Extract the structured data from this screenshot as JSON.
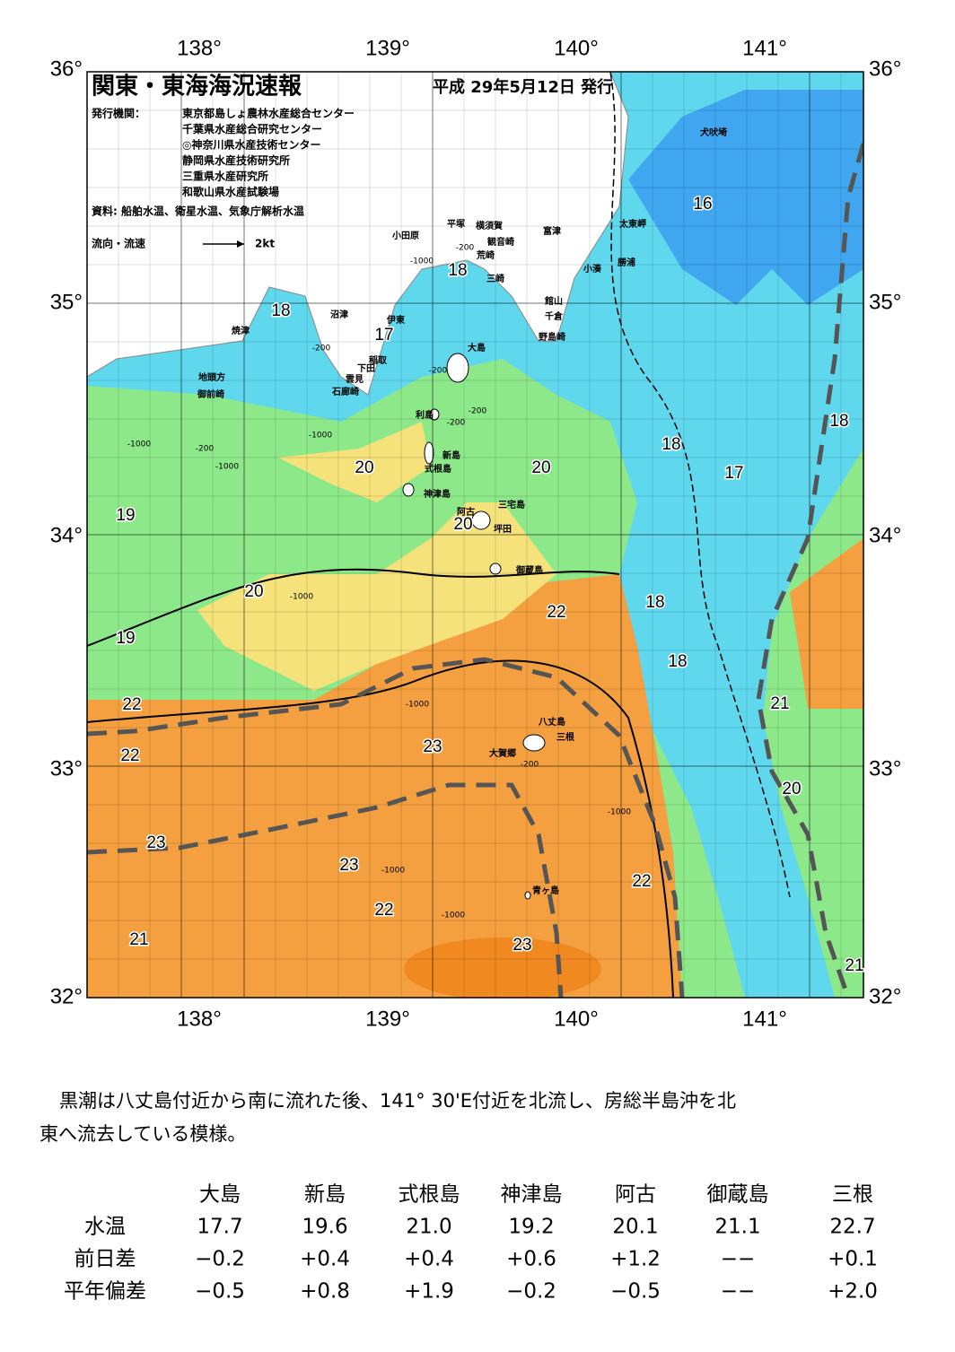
{
  "header": {
    "title": "関東・東海海況速報",
    "date": "平成 29年5月12日 発行",
    "publisher_label": "発行機関：",
    "publishers": [
      "東京都島しょ農林水産総合センター",
      "千葉県水産総合研究センター",
      "◎神奈川県水産技術センター",
      "静岡県水産技術研究所",
      "三重県水産研究所",
      "和歌山県水産試験場"
    ],
    "source": "資料: 船舶水温、衛星水温、気象庁解析水温",
    "legend_label": "流向・流速",
    "legend_scale": "2kt"
  },
  "map": {
    "lon_labels": [
      "138°",
      "139°",
      "140°",
      "141°"
    ],
    "lat_labels": [
      "36°",
      "35°",
      "34°",
      "33°",
      "32°"
    ],
    "place_names": [
      "犬吠埼",
      "太東岬",
      "勝浦",
      "小湊",
      "富津",
      "館山",
      "千倉",
      "野島崎",
      "横須賀",
      "観音崎",
      "荒崎",
      "三崎",
      "平塚",
      "小田原",
      "沼津",
      "伊東",
      "稲取",
      "下田",
      "雲見",
      "石廊崎",
      "焼津",
      "地頭方",
      "御前崎",
      "大島",
      "利島",
      "新島",
      "式根島",
      "神津島",
      "三宅島",
      "阿古",
      "坪田",
      "御蔵島",
      "八丈島",
      "三根",
      "大賀郷",
      "青ヶ島"
    ],
    "temperature_labels": [
      16,
      18,
      18,
      17,
      18,
      17,
      18,
      20,
      20,
      20,
      19,
      20,
      22,
      18,
      18,
      19,
      21,
      22,
      22,
      23,
      20,
      23,
      23,
      22,
      22,
      21,
      23,
      21
    ],
    "depth_labels": [
      "-200",
      "-1000",
      "-200",
      "-200",
      "-200",
      "-1000",
      "-200",
      "-1000",
      "-1000",
      "-200",
      "-1000",
      "-1000",
      "-200",
      "-1000",
      "-1000",
      "-1000"
    ]
  },
  "summary": [
    "黒潮は八丈島付近から南に流れた後、141° 30'E付近を北流し、房総半島沖を北",
    "東へ流去している模様。"
  ],
  "table": {
    "columns": [
      "大島",
      "新島",
      "式根島",
      "神津島",
      "阿古",
      "御蔵島",
      "三根"
    ],
    "rows": [
      {
        "label": "水温",
        "values": [
          "17.7",
          "19.6",
          "21.0",
          "19.2",
          "20.1",
          "21.1",
          "22.7"
        ]
      },
      {
        "label": "前日差",
        "values": [
          "−0.2",
          "+0.4",
          "+0.4",
          "+0.6",
          "+1.2",
          "−−",
          "+0.1"
        ]
      },
      {
        "label": "平年偏差",
        "values": [
          "−0.5",
          "+0.8",
          "+1.9",
          "−0.2",
          "−0.5",
          "−−",
          "+2.0"
        ]
      }
    ]
  }
}
